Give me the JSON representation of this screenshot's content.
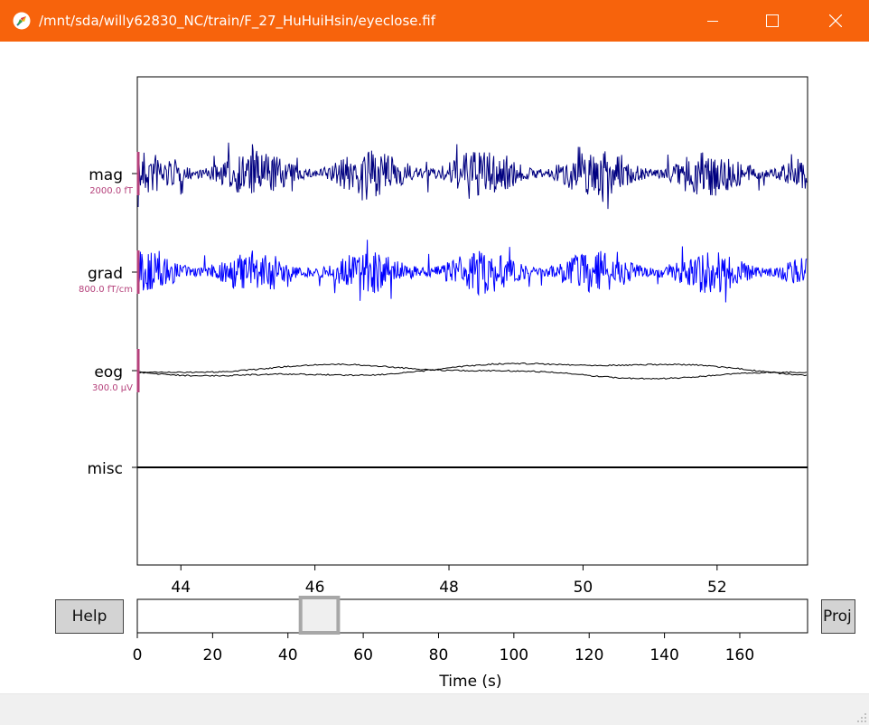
{
  "window": {
    "title": "/mnt/sda/willy62830_NC/train/F_27_HuHuiHsin/eyeclose.fif",
    "controls": [
      "minimize-icon",
      "maximize-icon",
      "close-icon"
    ],
    "titlebar_color": "#f7630c"
  },
  "plot": {
    "channels": [
      {
        "name": "mag",
        "scale": "2000.0 fT",
        "color": "#000080"
      },
      {
        "name": "grad",
        "scale": "800.0 fT/cm",
        "color": "#0000ff"
      },
      {
        "name": "eog",
        "scale": "300.0 µV",
        "color": "#000000"
      },
      {
        "name": "misc",
        "scale": "",
        "color": "#000000"
      }
    ],
    "x_ticks": [
      "44",
      "46",
      "48",
      "50",
      "52"
    ],
    "x_range": [
      43.35,
      53.35
    ],
    "scale_bar_color": "#b5417b"
  },
  "scrollbar": {
    "ticks": [
      "0",
      "20",
      "40",
      "60",
      "80",
      "100",
      "120",
      "140",
      "160"
    ],
    "xlabel": "Time (s)",
    "range": [
      0,
      178
    ],
    "window_start": 43.35,
    "window_end": 53.35
  },
  "buttons": {
    "help": "Help",
    "proj": "Proj"
  }
}
